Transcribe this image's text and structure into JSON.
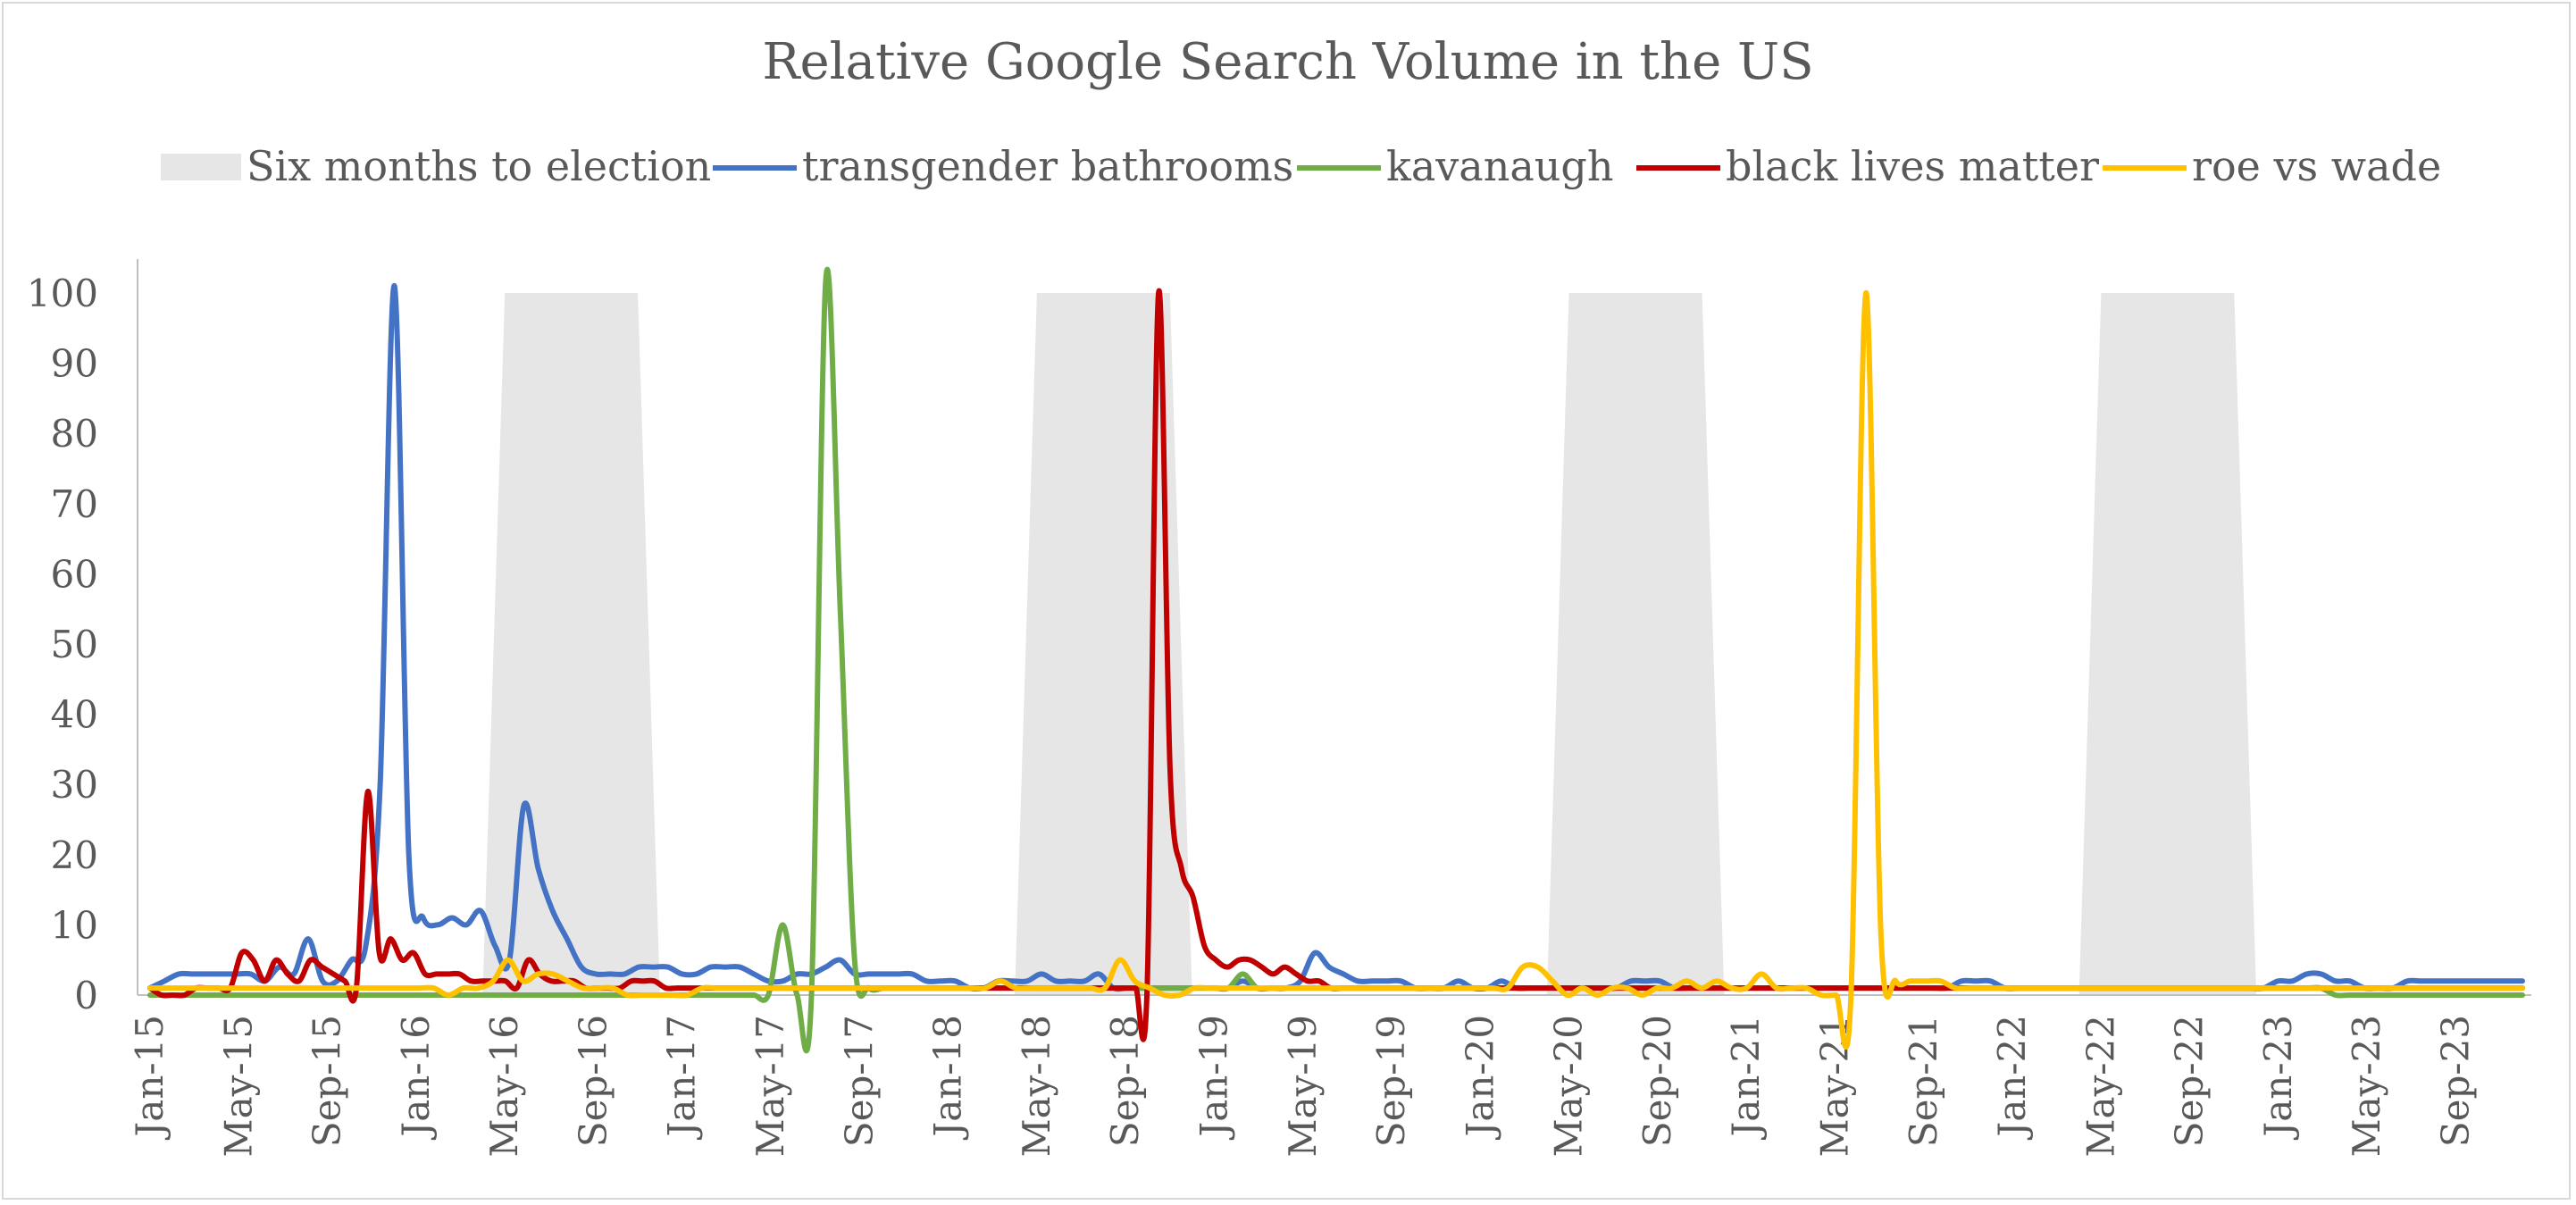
{
  "chart_data": {
    "type": "line",
    "title": "Relative Google Search Volume in the US",
    "xlabel": "",
    "ylabel": "",
    "ylim": [
      0,
      100
    ],
    "yticks": [
      0,
      10,
      20,
      30,
      40,
      50,
      60,
      70,
      80,
      90,
      100
    ],
    "xticks": [
      "Jan-15",
      "May-15",
      "Sep-15",
      "Jan-16",
      "May-16",
      "Sep-16",
      "Jan-17",
      "May-17",
      "Sep-17",
      "Jan-18",
      "May-18",
      "Sep-18",
      "Jan-19",
      "May-19",
      "Sep-19",
      "Jan-20",
      "May-20",
      "Sep-20",
      "Jan-21",
      "May-21",
      "Sep-21",
      "Jan-22",
      "May-22",
      "Sep-22",
      "Jan-23",
      "May-23",
      "Sep-23"
    ],
    "x_start": "Jan-15",
    "x_end": "Dec-23",
    "grid": false,
    "legend_position": "top",
    "shaded_area": {
      "name": "Six months to election",
      "color": "#e6e6e6",
      "value": 100,
      "periods": [
        {
          "start": "May-16",
          "end": "Nov-16"
        },
        {
          "start": "May-18",
          "end": "Nov-18"
        },
        {
          "start": "May-20",
          "end": "Nov-20"
        },
        {
          "start": "May-22",
          "end": "Nov-22"
        }
      ]
    },
    "series": [
      {
        "name": "transgender bathrooms",
        "color": "#4472c4",
        "values": [
          1,
          2,
          3,
          3,
          3,
          3,
          3,
          3,
          2,
          4,
          3,
          8,
          2,
          2,
          5,
          7,
          30,
          101,
          20,
          11,
          10,
          11,
          10,
          12,
          7,
          5,
          27,
          18,
          12,
          8,
          4,
          3,
          3,
          3,
          4,
          4,
          4,
          3,
          3,
          4,
          4,
          4,
          3,
          2,
          2,
          3,
          3,
          4,
          5,
          3,
          3,
          3,
          3,
          3,
          2,
          2,
          2,
          1,
          1,
          2,
          2,
          2,
          3,
          2,
          2,
          2,
          3,
          1,
          1,
          1,
          1,
          1,
          1,
          1,
          1,
          1,
          2,
          1,
          1,
          1,
          2,
          6,
          4,
          3,
          2,
          2,
          2,
          2,
          1,
          1,
          1,
          2,
          1,
          1,
          2,
          1,
          1,
          1,
          1,
          1,
          1,
          1,
          1,
          2,
          2,
          2,
          1,
          1,
          1,
          1,
          1,
          1,
          1,
          1,
          1,
          1,
          1,
          1,
          1,
          1,
          1,
          1,
          1,
          1,
          1,
          1,
          2,
          2,
          2,
          1,
          1,
          1,
          1,
          1,
          1,
          1,
          1,
          1,
          1,
          1,
          1,
          1,
          1,
          1,
          1,
          1,
          1,
          1,
          2,
          2,
          3,
          3,
          2,
          2,
          1,
          1,
          1,
          2,
          2,
          2,
          2,
          2,
          2,
          2,
          2,
          2
        ]
      },
      {
        "name": "kavanaugh",
        "color": "#70ad47",
        "values": [
          0,
          0,
          0,
          0,
          0,
          0,
          0,
          0,
          0,
          0,
          0,
          0,
          0,
          0,
          0,
          0,
          0,
          0,
          0,
          0,
          0,
          0,
          0,
          0,
          0,
          0,
          0,
          0,
          0,
          0,
          0,
          0,
          0,
          0,
          0,
          0,
          0,
          0,
          0,
          0,
          0,
          0,
          0,
          0,
          10,
          0,
          0,
          102,
          55,
          5,
          1,
          1,
          1,
          1,
          1,
          1,
          1,
          1,
          1,
          1,
          1,
          1,
          1,
          1,
          1,
          1,
          1,
          1,
          1,
          1,
          1,
          1,
          1,
          1,
          1,
          1,
          3,
          1,
          1,
          1,
          1,
          1,
          1,
          1,
          1,
          1,
          1,
          1,
          1,
          1,
          1,
          1,
          1,
          1,
          1,
          1,
          1,
          1,
          1,
          1,
          1,
          1,
          1,
          1,
          1,
          1,
          1,
          1,
          1,
          1,
          1,
          1,
          1,
          1,
          1,
          1,
          1,
          1,
          1,
          1,
          1,
          1,
          1,
          1,
          1,
          1,
          1,
          1,
          1,
          1,
          1,
          1,
          1,
          1,
          1,
          1,
          1,
          1,
          1,
          1,
          1,
          1,
          1,
          1,
          1,
          1,
          1,
          1,
          1,
          1,
          1,
          1,
          0,
          0,
          0,
          0,
          0,
          0,
          0,
          0,
          0,
          0,
          0,
          0,
          0,
          0
        ]
      },
      {
        "name": "black lives matter",
        "color": "#c00000",
        "values": [
          1,
          0,
          0,
          0,
          1,
          1,
          1,
          1,
          6,
          5,
          2,
          5,
          3,
          2,
          5,
          4,
          3,
          2,
          1,
          29,
          6,
          8,
          5,
          6,
          3,
          3,
          3,
          3,
          2,
          2,
          2,
          2,
          1,
          5,
          3,
          2,
          2,
          2,
          1,
          1,
          1,
          1,
          2,
          2,
          2,
          1,
          1,
          1,
          1,
          1,
          1,
          1,
          1,
          1,
          1,
          1,
          1,
          1,
          1,
          1,
          1,
          1,
          1,
          1,
          1,
          1,
          1,
          1,
          1,
          1,
          1,
          1,
          1,
          1,
          1,
          1,
          1,
          1,
          1,
          1,
          1,
          1,
          1,
          1,
          1,
          1,
          1,
          1,
          100,
          32,
          18,
          14,
          7,
          5,
          4,
          5,
          5,
          4,
          3,
          4,
          3,
          2,
          2,
          1,
          1,
          1,
          1,
          1,
          1,
          1,
          1,
          1,
          1,
          1,
          1,
          1,
          1,
          1,
          1,
          1,
          1,
          1,
          1,
          1,
          1,
          1,
          1,
          1,
          1,
          1,
          1,
          1,
          1,
          1,
          1,
          1,
          1,
          1,
          1,
          1,
          1,
          1,
          1,
          1,
          1,
          1,
          1,
          1,
          1,
          1,
          1,
          1,
          1,
          1,
          1,
          1,
          1,
          1,
          1,
          1,
          1,
          1,
          1,
          1,
          1,
          1,
          1,
          1,
          1,
          1,
          1,
          1,
          1,
          1,
          1,
          1,
          1,
          1,
          1,
          1,
          1,
          1,
          1,
          1,
          1,
          1,
          1,
          1,
          1,
          1,
          1,
          1,
          1,
          1,
          1,
          1,
          1,
          1,
          1,
          1,
          1,
          1,
          1,
          1,
          1,
          1,
          1,
          1
        ]
      },
      {
        "name": "roe vs wade",
        "color": "#ffc000",
        "values": [
          1,
          1,
          1,
          1,
          1,
          1,
          1,
          1,
          1,
          1,
          1,
          1,
          1,
          1,
          1,
          1,
          1,
          1,
          1,
          1,
          0,
          1,
          1,
          2,
          5,
          2,
          3,
          3,
          2,
          1,
          1,
          1,
          0,
          0,
          0,
          0,
          0,
          1,
          1,
          1,
          1,
          1,
          1,
          1,
          1,
          1,
          1,
          1,
          1,
          1,
          1,
          1,
          1,
          1,
          1,
          1,
          1,
          2,
          1,
          1,
          1,
          1,
          1,
          1,
          1,
          5,
          2,
          1,
          0,
          0,
          1,
          1,
          1,
          1,
          1,
          1,
          1,
          1,
          1,
          1,
          1,
          1,
          1,
          1,
          1,
          1,
          1,
          1,
          1,
          1,
          1,
          1,
          4,
          4,
          2,
          0,
          1,
          0,
          1,
          1,
          0,
          1,
          1,
          2,
          1,
          2,
          1,
          1,
          3,
          1,
          1,
          1,
          0,
          0,
          0,
          100,
          9,
          2,
          2,
          2,
          2,
          1,
          1,
          1,
          1,
          1,
          1,
          1,
          1,
          1,
          1,
          1,
          1,
          1,
          1,
          1,
          1,
          1,
          1,
          1,
          1,
          1,
          1,
          1,
          1,
          1,
          1,
          1,
          1,
          1,
          1,
          1,
          1,
          1,
          1,
          1,
          1,
          1,
          1,
          1
        ]
      }
    ]
  }
}
